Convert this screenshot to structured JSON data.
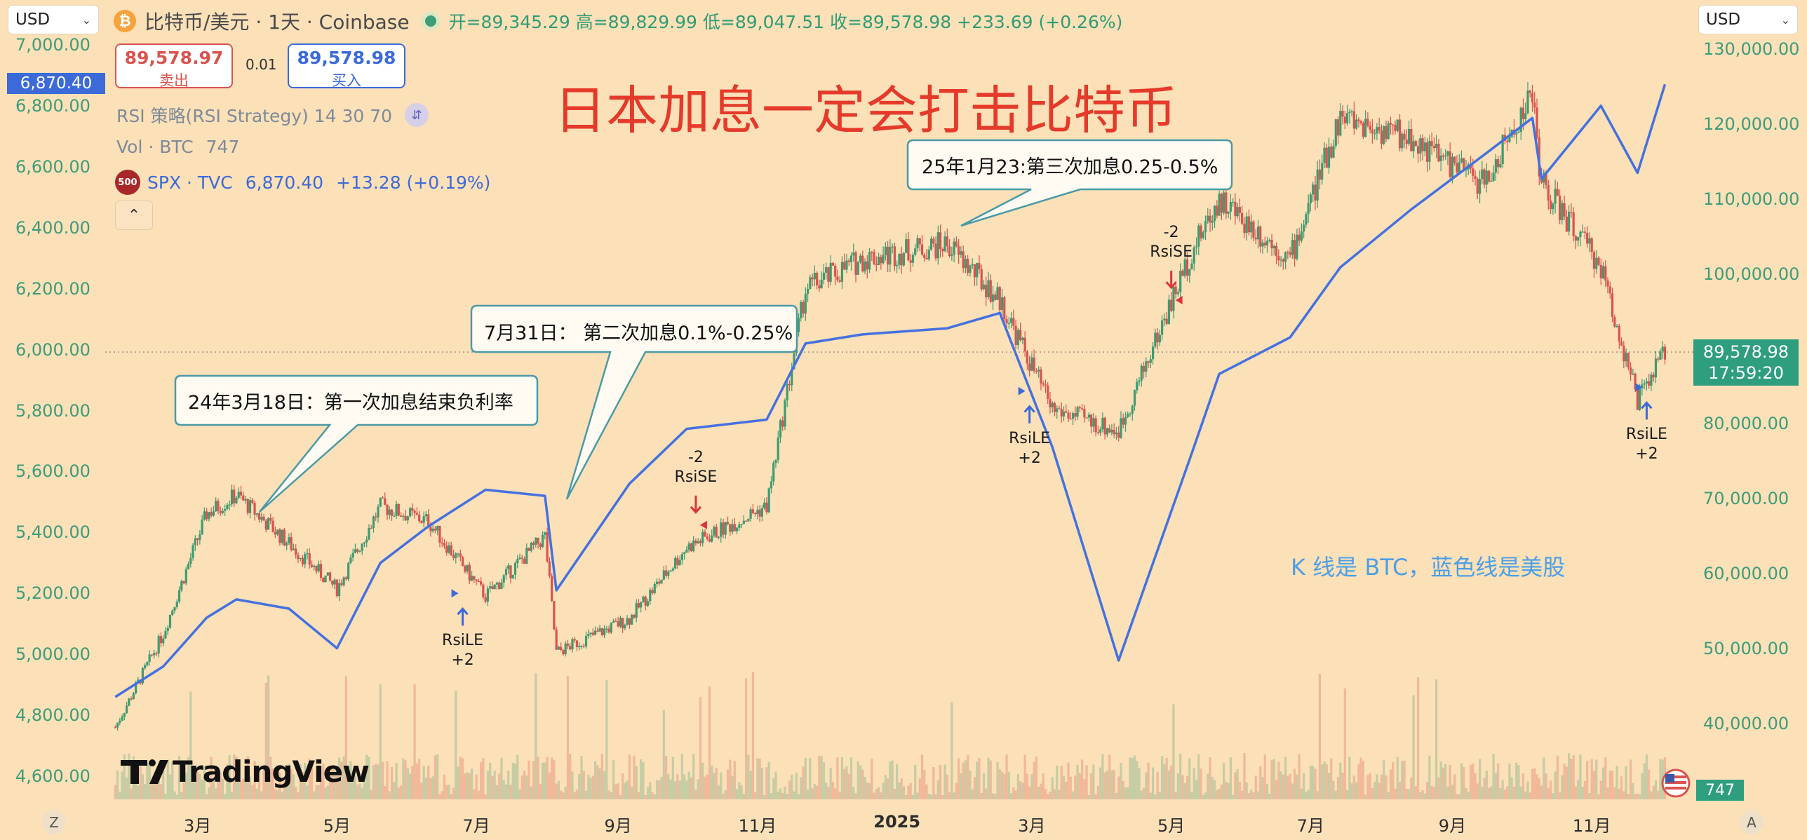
{
  "header": {
    "currency_left": "USD",
    "currency_right": "USD",
    "coin_icon": "₿",
    "symbol_title": "比特币/美元 · 1天 · Coinbase",
    "ohlc": "开=89,345.29 高=89,829.99 低=89,047.51 收=89,578.98 +233.69 (+0.26%)"
  },
  "trade": {
    "sell_price": "89,578.97",
    "sell_label": "卖出",
    "spread": "0.01",
    "buy_price": "89,578.98",
    "buy_label": "买入"
  },
  "legend": {
    "rsi": "RSI 策略(RSI Strategy) 14 30 70",
    "vol_name": "Vol · BTC",
    "vol_value": "747",
    "spx_badge": "500",
    "spx_name": "SPX · TVC",
    "spx_value": "6,870.40",
    "spx_change": "+13.28 (+0.19%)",
    "collapse_icon": "chevron-up-icon"
  },
  "annotations": {
    "headline": "日本加息一定会打击比特币",
    "callout1": "24年3月18日：第一次加息结束负利率",
    "callout2": "7月31日：  第二次加息0.1%-0.25%",
    "callout3": "25年1月23:第三次加息0.25-0.5%",
    "note": "K 线是 BTC，蓝色线是美股"
  },
  "axes": {
    "left_ticks": [
      "7,000.00",
      "6,800.00",
      "6,600.00",
      "6,400.00",
      "6,200.00",
      "6,000.00",
      "5,800.00",
      "5,600.00",
      "5,400.00",
      "5,200.00",
      "5,000.00",
      "4,800.00",
      "4,600.00"
    ],
    "right_ticks": [
      "130,000.00",
      "120,000.00",
      "110,000.00",
      "100,000.00",
      "90,000.00",
      "80,000.00",
      "70,000.00",
      "60,000.00",
      "50,000.00",
      "40,000.00"
    ],
    "x_ticks": [
      "3月",
      "5月",
      "7月",
      "9月",
      "11月",
      "2025",
      "3月",
      "5月",
      "7月",
      "9月",
      "11月"
    ],
    "left_badge": "6,870.40",
    "price_badge": "89,578.98",
    "countdown": "17:59:20",
    "vol_badge": "747",
    "corner_left": "Z",
    "corner_right": "A"
  },
  "signals": [
    {
      "top": "",
      "bottom": "RsiLE\n+2",
      "dir": "up"
    },
    {
      "top": "-2\nRsiSE",
      "bottom": "",
      "dir": "down"
    },
    {
      "top": "",
      "bottom": "RsiLE\n+2",
      "dir": "up"
    },
    {
      "top": "-2\nRsiSE",
      "bottom": "",
      "dir": "down"
    },
    {
      "top": "",
      "bottom": "RsiLE\n+2",
      "dir": "up"
    }
  ],
  "branding": {
    "logo_text": "TradingView"
  },
  "colors": {
    "background": "#fbe0b8",
    "spx_line": "#4471e0",
    "candle_up": "#3e9b70",
    "candle_down": "#d9534f",
    "headline": "#e53a2a",
    "note": "#4b9fe6",
    "price_badge": "#2f9e7e"
  },
  "chart_data": {
    "type": "line",
    "x": [
      "2024-01-25",
      "2024-02-15",
      "2024-03-05",
      "2024-03-18",
      "2024-04-10",
      "2024-05-01",
      "2024-05-20",
      "2024-06-10",
      "2024-07-05",
      "2024-07-31",
      "2024-08-05",
      "2024-09-06",
      "2024-10-01",
      "2024-11-05",
      "2024-11-22",
      "2024-12-17",
      "2025-01-23",
      "2025-02-15",
      "2025-03-10",
      "2025-04-08",
      "2025-05-10",
      "2025-05-22",
      "2025-06-22",
      "2025-07-14",
      "2025-08-14",
      "2025-09-15",
      "2025-10-06",
      "2025-10-10",
      "2025-11-05",
      "2025-11-21",
      "2025-12-03"
    ],
    "series": [
      {
        "values": [
          39500,
          52000,
          68000,
          70500,
          64000,
          58000,
          69000,
          67000,
          57000,
          65000,
          49500,
          54000,
          63500,
          69000,
          98000,
          102000,
          104000,
          96500,
          82000,
          79000,
          103000,
          110000,
          102000,
          121000,
          118000,
          112000,
          124000,
          112000,
          101000,
          83000,
          89578.98
        ]
      },
      {
        "values": [
          4860,
          4960,
          5120,
          5180,
          5150,
          5020,
          5300,
          5420,
          5540,
          5520,
          5210,
          5560,
          5740,
          5770,
          6020,
          6050,
          6070,
          6120,
          5680,
          4980,
          5660,
          5920,
          6040,
          6270,
          6460,
          6640,
          6760,
          6560,
          6800,
          6580,
          6870.4
        ]
      }
    ],
    "left_axis_range": [
      4550,
      7050
    ],
    "right_axis_range": [
      30000,
      130000
    ]
  }
}
